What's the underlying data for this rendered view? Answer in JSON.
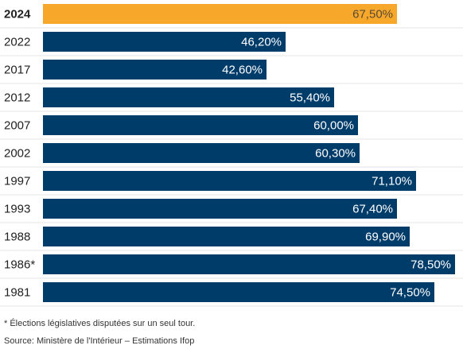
{
  "chart_data": {
    "type": "bar",
    "orientation": "horizontal",
    "categories": [
      "2024",
      "2022",
      "2017",
      "2012",
      "2007",
      "2002",
      "1997",
      "1993",
      "1988",
      "1986*",
      "1981"
    ],
    "values": [
      67.5,
      46.2,
      42.6,
      55.4,
      60.0,
      60.3,
      71.1,
      67.4,
      69.9,
      78.5,
      74.5
    ],
    "value_labels": [
      "67,50%",
      "46,20%",
      "42,60%",
      "55,40%",
      "60,00%",
      "60,30%",
      "71,10%",
      "67,40%",
      "69,90%",
      "78,50%",
      "74,50%"
    ],
    "highlight_category": "2024",
    "xlim": [
      0,
      78.5
    ],
    "colors": {
      "bar": "#003c6a",
      "highlight": "#f7a82b"
    },
    "grid": false,
    "legend": "none"
  },
  "notes": {
    "footnote": "* Élections législatives disputées sur un seul tour.",
    "source": "Source: Ministère de l'Intérieur – Estimations Ifop"
  }
}
